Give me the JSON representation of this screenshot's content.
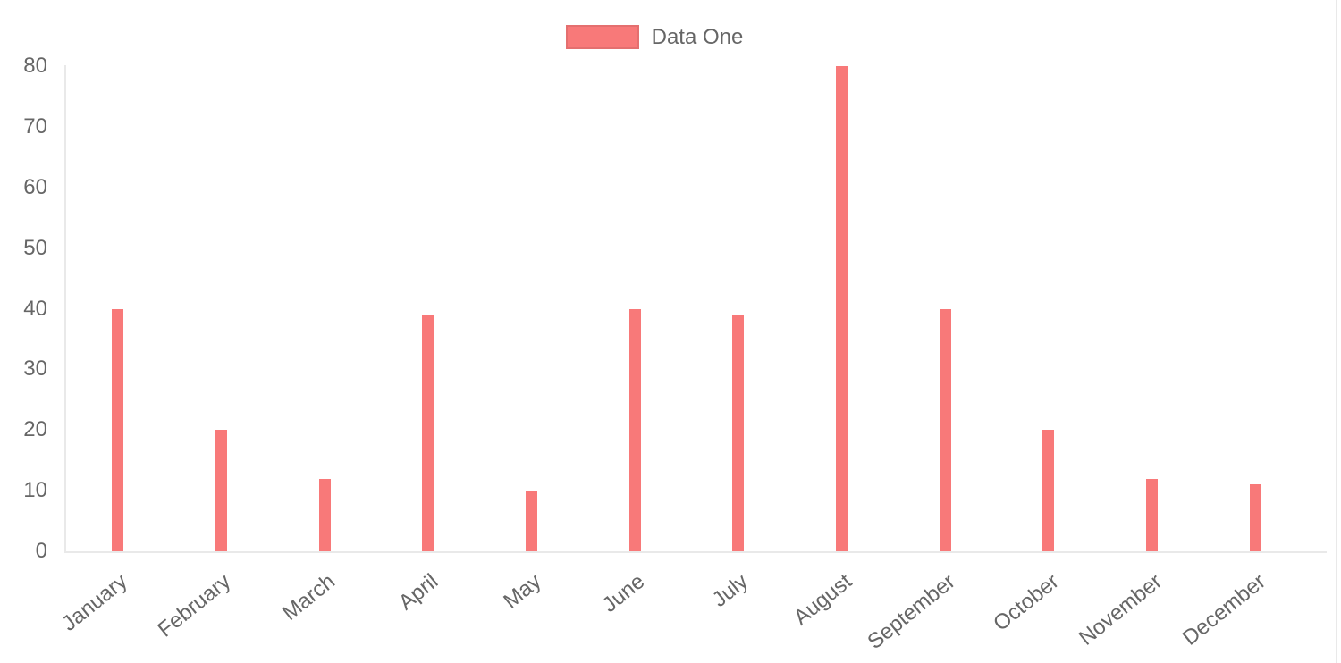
{
  "chart_data": {
    "type": "bar",
    "title": "",
    "xlabel": "",
    "ylabel": "",
    "categories": [
      "January",
      "February",
      "March",
      "April",
      "May",
      "June",
      "July",
      "August",
      "September",
      "October",
      "November",
      "December"
    ],
    "series": [
      {
        "name": "Data One",
        "values": [
          40,
          20,
          12,
          39,
          10,
          40,
          39,
          80,
          40,
          20,
          12,
          11
        ]
      }
    ],
    "ylim": [
      0,
      80
    ],
    "y_ticks": [
      0,
      10,
      20,
      30,
      40,
      50,
      60,
      70,
      80
    ],
    "x_tick_rotation_deg": -39,
    "grid": false,
    "legend_position": "top",
    "colors": {
      "bar": "#f87979",
      "axis_line": "#e9e9e9",
      "tick_text": "#666666"
    }
  }
}
